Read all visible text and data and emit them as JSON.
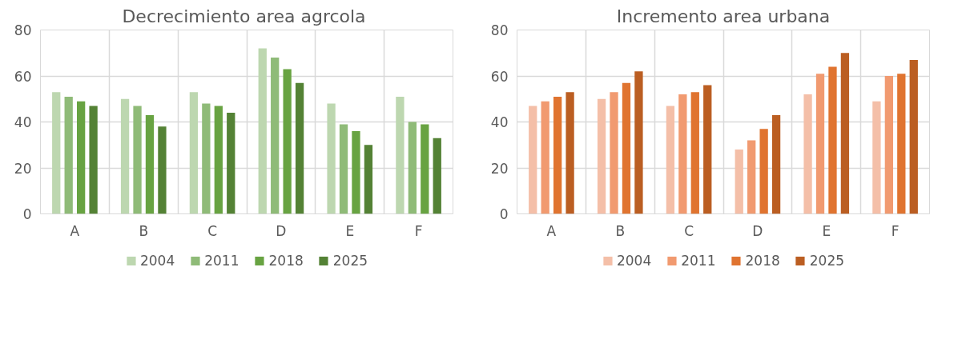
{
  "chart_data": [
    {
      "type": "bar",
      "title": "Decrecimiento area  agrcola",
      "categories": [
        "A",
        "B",
        "C",
        "D",
        "E",
        "F"
      ],
      "series": [
        {
          "name": "2004",
          "color": "#bdd7b0",
          "values": [
            53,
            50,
            53,
            72,
            48,
            51
          ]
        },
        {
          "name": "2011",
          "color": "#8fbb78",
          "values": [
            51,
            47,
            48,
            68,
            39,
            40
          ]
        },
        {
          "name": "2018",
          "color": "#68a342",
          "values": [
            49,
            43,
            47,
            63,
            36,
            39
          ]
        },
        {
          "name": "2025",
          "color": "#548235",
          "values": [
            47,
            38,
            44,
            57,
            30,
            33
          ]
        }
      ],
      "ylim": [
        0,
        80
      ],
      "yticks": [
        0,
        20,
        40,
        60,
        80
      ],
      "grid": true,
      "legend": "bottom"
    },
    {
      "type": "bar",
      "title": "Incremento area urbana",
      "categories": [
        "A",
        "B",
        "C",
        "D",
        "E",
        "F"
      ],
      "series": [
        {
          "name": "2004",
          "color": "#f4bfa8",
          "values": [
            47,
            50,
            47,
            28,
            52,
            49
          ]
        },
        {
          "name": "2011",
          "color": "#f19a70",
          "values": [
            49,
            53,
            52,
            32,
            61,
            60
          ]
        },
        {
          "name": "2018",
          "color": "#e07430",
          "values": [
            51,
            57,
            53,
            37,
            64,
            61
          ]
        },
        {
          "name": "2025",
          "color": "#bb5e22",
          "values": [
            53,
            62,
            56,
            43,
            70,
            67
          ]
        }
      ],
      "ylim": [
        0,
        80
      ],
      "yticks": [
        0,
        20,
        40,
        60,
        80
      ],
      "grid": true,
      "legend": "bottom"
    }
  ]
}
